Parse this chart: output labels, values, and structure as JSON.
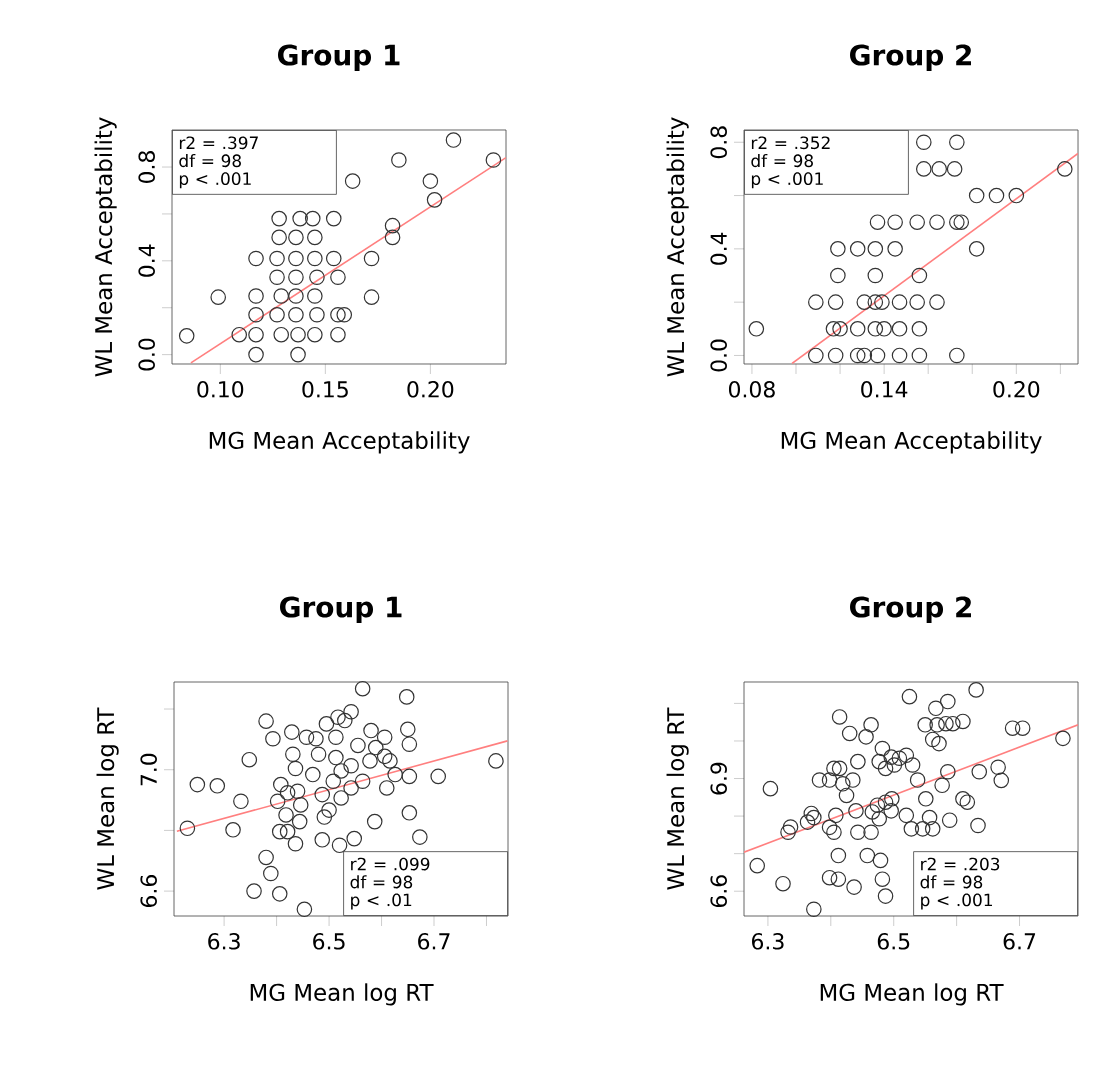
{
  "chart_data": [
    {
      "type": "scatter",
      "title": "Group 1",
      "xlabel": "MG Mean Acceptability",
      "ylabel": "WL Mean Acceptability",
      "xlim": [
        0.077,
        0.236
      ],
      "ylim": [
        -0.04,
        0.958
      ],
      "xticks": [
        {
          "value": 0.1,
          "label": "0.10"
        },
        {
          "value": 0.15,
          "label": "0.15"
        },
        {
          "value": 0.2,
          "label": "0.20"
        }
      ],
      "yticks": [
        {
          "value": 0,
          "label": "0.0"
        },
        {
          "value": 0.2,
          "label": null
        },
        {
          "value": 0.4,
          "label": "0.4"
        },
        {
          "value": 0.6,
          "label": null
        },
        {
          "value": 0.8,
          "label": "0.8"
        }
      ],
      "annotations": [
        "r2 = .397",
        "df = 98",
        "p < .001"
      ],
      "series": [
        {
          "marker": "circle",
          "color": "#333333",
          "x": [
            0.084,
            0.211,
            0.23,
            0.185,
            0.163,
            0.2,
            0.202,
            0.182,
            0.182,
            0.172,
            0.172,
            0.099,
            0.128,
            0.138,
            0.144,
            0.154,
            0.128,
            0.136,
            0.145,
            0.117,
            0.127,
            0.136,
            0.145,
            0.154,
            0.127,
            0.136,
            0.146,
            0.156,
            0.117,
            0.129,
            0.136,
            0.145,
            0.117,
            0.127,
            0.136,
            0.146,
            0.156,
            0.159,
            0.109,
            0.117,
            0.129,
            0.137,
            0.145,
            0.156,
            0.117,
            0.137
          ],
          "values": [
            0.08,
            0.915,
            0.83,
            0.83,
            0.74,
            0.74,
            0.66,
            0.55,
            0.5,
            0.41,
            0.245,
            0.245,
            0.58,
            0.58,
            0.58,
            0.58,
            0.5,
            0.5,
            0.5,
            0.41,
            0.41,
            0.41,
            0.41,
            0.41,
            0.33,
            0.33,
            0.33,
            0.33,
            0.25,
            0.25,
            0.25,
            0.25,
            0.17,
            0.17,
            0.17,
            0.17,
            0.17,
            0.17,
            0.085,
            0.085,
            0.085,
            0.085,
            0.085,
            0.085,
            0.0,
            0.0
          ]
        },
        {
          "type": "line",
          "color": "#ff7f7f",
          "x": [
            0.086,
            0.236
          ],
          "values": [
            -0.035,
            0.84
          ]
        }
      ]
    },
    {
      "type": "scatter",
      "title": "Group 2",
      "xlabel": "MG Mean Acceptability",
      "ylabel": "WL Mean Acceptability",
      "xlim": [
        0.0764,
        0.228
      ],
      "ylim": [
        -0.032,
        0.846
      ],
      "xticks": [
        {
          "value": 0.08,
          "label": "0.08"
        },
        {
          "value": 0.1,
          "label": null
        },
        {
          "value": 0.12,
          "label": null
        },
        {
          "value": 0.14,
          "label": "0.14"
        },
        {
          "value": 0.16,
          "label": null
        },
        {
          "value": 0.18,
          "label": null
        },
        {
          "value": 0.2,
          "label": "0.20"
        },
        {
          "value": 0.22,
          "label": null
        }
      ],
      "yticks": [
        {
          "value": 0,
          "label": "0.0"
        },
        {
          "value": 0.2,
          "label": null
        },
        {
          "value": 0.4,
          "label": "0.4"
        },
        {
          "value": 0.6,
          "label": null
        },
        {
          "value": 0.8,
          "label": "0.8"
        }
      ],
      "annotations": [
        "r2 = .352",
        "df = 98",
        "p < .001"
      ],
      "series": [
        {
          "marker": "circle",
          "color": "#333333",
          "x": [
            0.082,
            0.158,
            0.173,
            0.158,
            0.165,
            0.172,
            0.222,
            0.182,
            0.191,
            0.2,
            0.137,
            0.145,
            0.155,
            0.164,
            0.173,
            0.175,
            0.119,
            0.128,
            0.136,
            0.145,
            0.182,
            0.119,
            0.136,
            0.156,
            0.109,
            0.118,
            0.131,
            0.136,
            0.139,
            0.147,
            0.155,
            0.164,
            0.117,
            0.12,
            0.128,
            0.136,
            0.14,
            0.147,
            0.156,
            0.109,
            0.118,
            0.128,
            0.131,
            0.137,
            0.147,
            0.156,
            0.173
          ],
          "values": [
            0.1,
            0.8,
            0.8,
            0.7,
            0.7,
            0.7,
            0.7,
            0.6,
            0.6,
            0.6,
            0.5,
            0.5,
            0.5,
            0.5,
            0.5,
            0.5,
            0.4,
            0.4,
            0.4,
            0.4,
            0.4,
            0.3,
            0.3,
            0.3,
            0.2,
            0.2,
            0.2,
            0.2,
            0.2,
            0.2,
            0.2,
            0.2,
            0.1,
            0.1,
            0.1,
            0.1,
            0.1,
            0.1,
            0.1,
            0.0,
            0.0,
            0.0,
            0.0,
            0.0,
            0.0,
            0.0,
            0.0
          ]
        },
        {
          "type": "line",
          "color": "#ff7f7f",
          "x": [
            0.0982,
            0.228
          ],
          "values": [
            -0.03,
            0.758
          ]
        }
      ]
    },
    {
      "type": "scatter",
      "title": "Group 1",
      "xlabel": "MG Mean log RT",
      "ylabel": "WL Mean log RT",
      "xlim": [
        6.2045,
        6.841
      ],
      "ylim": [
        6.518,
        7.289
      ],
      "xticks": [
        {
          "value": 6.3,
          "label": "6.3"
        },
        {
          "value": 6.4,
          "label": null
        },
        {
          "value": 6.5,
          "label": "6.5"
        },
        {
          "value": 6.6,
          "label": null
        },
        {
          "value": 6.7,
          "label": "6.7"
        },
        {
          "value": 6.8,
          "label": null
        }
      ],
      "yticks": [
        {
          "value": 6.6,
          "label": "6.6"
        },
        {
          "value": 6.8,
          "label": null
        },
        {
          "value": 7.0,
          "label": "7.0"
        },
        {
          "value": 7.2,
          "label": null
        }
      ],
      "annotations": [
        "r2 = .099",
        "df = 98",
        "p < .01"
      ],
      "series": [
        {
          "marker": "circle",
          "color": "#333333",
          "x": [
            6.23,
            6.249,
            6.287,
            6.332,
            6.317,
            6.348,
            6.38,
            6.393,
            6.429,
            6.431,
            6.436,
            6.408,
            6.421,
            6.402,
            6.44,
            6.446,
            6.418,
            6.406,
            6.421,
            6.444,
            6.436,
            6.38,
            6.389,
            6.357,
            6.406,
            6.453,
            6.475,
            6.48,
            6.469,
            6.487,
            6.491,
            6.487,
            6.517,
            6.53,
            6.542,
            6.564,
            6.513,
            6.513,
            6.523,
            6.542,
            6.555,
            6.508,
            6.523,
            6.542,
            6.5,
            6.52,
            6.548,
            6.587,
            6.58,
            6.589,
            6.606,
            6.606,
            6.616,
            6.61,
            6.626,
            6.648,
            6.65,
            6.653,
            6.653,
            6.653,
            6.673,
            6.708,
            6.818,
            6.578,
            6.564,
            6.495,
            6.457
          ],
          "values": [
            6.807,
            6.951,
            6.947,
            6.896,
            6.802,
            7.033,
            7.16,
            7.102,
            7.124,
            7.051,
            7.004,
            6.951,
            6.924,
            6.896,
            6.929,
            6.884,
            6.851,
            6.796,
            6.796,
            6.829,
            6.756,
            6.711,
            6.658,
            6.6,
            6.591,
            6.54,
            7.102,
            7.051,
            6.984,
            6.918,
            6.844,
            6.769,
            7.173,
            7.162,
            7.191,
            7.267,
            7.107,
            7.04,
            6.996,
            7.013,
            7.08,
            6.962,
            6.907,
            6.94,
            6.867,
            6.751,
            6.773,
            6.829,
            7.129,
            7.073,
            7.107,
            7.044,
            7.029,
            6.94,
            6.984,
            7.24,
            7.133,
            7.084,
            6.978,
            6.858,
            6.778,
            6.978,
            7.029,
            7.029,
            6.962,
            7.151,
            7.107
          ]
        },
        {
          "type": "line",
          "color": "#ff7f7f",
          "x": [
            6.21,
            6.84
          ],
          "values": [
            6.797,
            7.095
          ]
        }
      ]
    },
    {
      "type": "scatter",
      "title": "Group 2",
      "xlabel": "MG Mean log RT",
      "ylabel": "WL Mean log RT",
      "xlim": [
        6.262,
        6.793
      ],
      "ylim": [
        6.534,
        7.157
      ],
      "xticks": [
        {
          "value": 6.3,
          "label": "6.3"
        },
        {
          "value": 6.4,
          "label": null
        },
        {
          "value": 6.5,
          "label": "6.5"
        },
        {
          "value": 6.6,
          "label": null
        },
        {
          "value": 6.7,
          "label": "6.7"
        }
      ],
      "yticks": [
        {
          "value": 6.6,
          "label": "6.6"
        },
        {
          "value": 6.7,
          "label": null
        },
        {
          "value": 6.8,
          "label": null
        },
        {
          "value": 6.9,
          "label": "6.9"
        },
        {
          "value": 7.0,
          "label": null
        },
        {
          "value": 7.1,
          "label": null
        }
      ],
      "annotations": [
        "r2 = .203",
        "df = 98",
        "p < .001"
      ],
      "series": [
        {
          "marker": "circle",
          "color": "#333333",
          "x": [
            6.283,
            6.304,
            6.324,
            6.332,
            6.336,
            6.363,
            6.373,
            6.369,
            6.373,
            6.382,
            6.398,
            6.405,
            6.414,
            6.414,
            6.419,
            6.435,
            6.443,
            6.425,
            6.408,
            6.398,
            6.405,
            6.398,
            6.412,
            6.412,
            6.437,
            6.43,
            6.456,
            6.464,
            6.458,
            6.482,
            6.477,
            6.487,
            6.501,
            6.496,
            6.509,
            6.52,
            6.525,
            6.479,
            6.482,
            6.487,
            6.44,
            6.443,
            6.464,
            6.466,
            6.474,
            6.487,
            6.497,
            6.477,
            6.496,
            6.53,
            6.538,
            6.52,
            6.528,
            6.546,
            6.562,
            6.551,
            6.557,
            6.567,
            6.586,
            6.55,
            6.569,
            6.562,
            6.572,
            6.583,
            6.594,
            6.61,
            6.586,
            6.577,
            6.589,
            6.61,
            6.617,
            6.631,
            6.634,
            6.636,
            6.666,
            6.671,
            6.689,
            6.705,
            6.769
          ],
          "values": [
            6.668,
            6.873,
            6.62,
            6.757,
            6.771,
            6.784,
            6.796,
            6.807,
            6.552,
            6.896,
            6.896,
            6.927,
            6.927,
            7.064,
            6.886,
            6.896,
            6.945,
            6.855,
            6.802,
            6.77,
            6.757,
            6.636,
            6.695,
            6.632,
            6.611,
            7.02,
            7.011,
            7.043,
            6.695,
            6.98,
            6.945,
            6.927,
            6.936,
            6.957,
            6.954,
            6.962,
            7.118,
            6.682,
            6.632,
            6.587,
            6.814,
            6.757,
            6.757,
            6.811,
            6.829,
            6.837,
            6.846,
            6.793,
            6.814,
            6.936,
            6.896,
            6.802,
            6.766,
            6.766,
            6.766,
            6.846,
            6.796,
            7.087,
            7.105,
            7.043,
            7.043,
            7.004,
            6.993,
            7.046,
            7.046,
            7.052,
            6.918,
            6.882,
            6.789,
            6.846,
            6.837,
            7.136,
            6.775,
            6.918,
            6.93,
            6.895,
            7.034,
            7.034,
            7.007
          ]
        },
        {
          "type": "line",
          "color": "#ff7f7f",
          "x": [
            6.262,
            6.793
          ],
          "values": [
            6.704,
            7.043
          ]
        }
      ]
    }
  ]
}
